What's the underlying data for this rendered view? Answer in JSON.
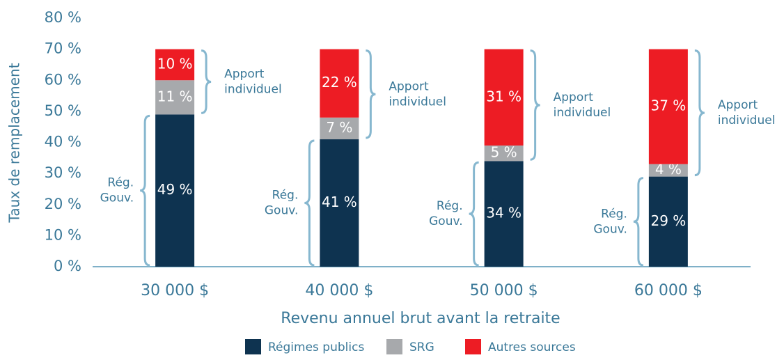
{
  "chart_data": {
    "type": "stacked_bar",
    "x_label": "Revenu annuel brut avant la retraite",
    "y_label": "Taux de remplacement",
    "categories": [
      "30 000 $",
      "40 000 $",
      "50 000 $",
      "60 000 $"
    ],
    "series": [
      {
        "name": "Régimes publics",
        "color": "#0e3350",
        "values": [
          49,
          41,
          34,
          29
        ],
        "value_labels": [
          "49 %",
          "41 %",
          "34 %",
          "29 %"
        ]
      },
      {
        "name": "SRG",
        "color": "#a7a9ac",
        "values": [
          11,
          7,
          5,
          4
        ],
        "value_labels": [
          "11 %",
          "7 %",
          "5 %",
          "4 %"
        ]
      },
      {
        "name": "Autres sources",
        "color": "#ed1c24",
        "values": [
          10,
          22,
          31,
          37
        ],
        "value_labels": [
          "10 %",
          "22 %",
          "31 %",
          "37 %"
        ]
      }
    ],
    "annotations": [
      [
        "Apport",
        "individuel"
      ],
      [
        "Rég.",
        "Gouv."
      ]
    ],
    "ylim": [
      0,
      80
    ],
    "yticks": [
      {
        "value": 0,
        "label": "0 %"
      },
      {
        "value": 10,
        "label": "10 %"
      },
      {
        "value": 20,
        "label": "20 %"
      },
      {
        "value": 30,
        "label": "30 %"
      },
      {
        "value": 40,
        "label": "40 %"
      },
      {
        "value": 50,
        "label": "50 %"
      },
      {
        "value": 60,
        "label": "60 %"
      },
      {
        "value": 70,
        "label": "70 %"
      },
      {
        "value": 80,
        "label": "80 %"
      }
    ],
    "legend": "bottom"
  }
}
